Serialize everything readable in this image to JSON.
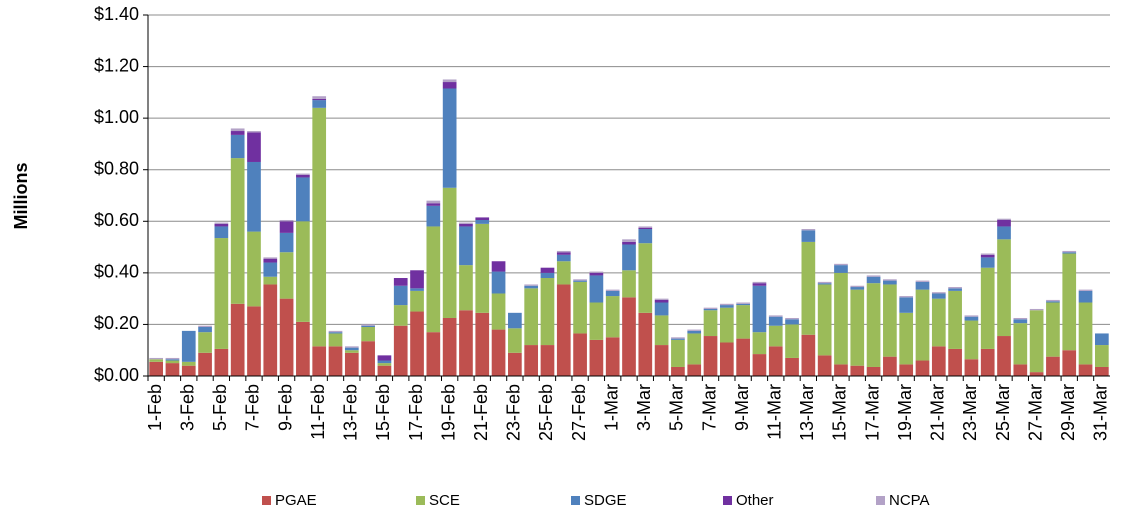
{
  "chart_data": {
    "type": "stacked-bar",
    "y_label": "Millions",
    "categories": [
      "1-Feb",
      null,
      "3-Feb",
      null,
      "5-Feb",
      null,
      "7-Feb",
      null,
      "9-Feb",
      null,
      "11-Feb",
      null,
      "13-Feb",
      null,
      "15-Feb",
      null,
      "17-Feb",
      null,
      "19-Feb",
      null,
      "21-Feb",
      null,
      "23-Feb",
      null,
      "25-Feb",
      null,
      "27-Feb",
      null,
      "1-Mar",
      null,
      "3-Mar",
      null,
      "5-Mar",
      null,
      "7-Mar",
      null,
      "9-Mar",
      null,
      "11-Mar",
      null,
      "13-Mar",
      null,
      "15-Mar",
      null,
      "17-Mar",
      null,
      "19-Mar",
      null,
      "21-Mar",
      null,
      "23-Mar",
      null,
      "25-Mar",
      null,
      "27-Mar",
      null,
      "29-Mar",
      null,
      "31-Mar"
    ],
    "series": [
      {
        "name": "PGAE",
        "color": "#c0504d",
        "values": [
          0.055,
          0.05,
          0.04,
          0.09,
          0.105,
          0.28,
          0.27,
          0.355,
          0.3,
          0.21,
          0.115,
          0.115,
          0.09,
          0.135,
          0.04,
          0.195,
          0.25,
          0.17,
          0.225,
          0.255,
          0.245,
          0.18,
          0.09,
          0.12,
          0.12,
          0.355,
          0.165,
          0.14,
          0.15,
          0.305,
          0.245,
          0.12,
          0.035,
          0.045,
          0.155,
          0.13,
          0.145,
          0.085,
          0.115,
          0.07,
          0.16,
          0.08,
          0.045,
          0.04,
          0.035,
          0.075,
          0.045,
          0.06,
          0.115,
          0.105,
          0.065,
          0.105,
          0.155,
          0.045,
          0.015,
          0.075,
          0.1,
          0.045,
          0.035
        ]
      },
      {
        "name": "SCE",
        "color": "#9bbb59",
        "values": [
          0.01,
          0.01,
          0.015,
          0.08,
          0.43,
          0.565,
          0.29,
          0.03,
          0.18,
          0.39,
          0.925,
          0.05,
          0.01,
          0.055,
          0.01,
          0.08,
          0.08,
          0.41,
          0.505,
          0.175,
          0.345,
          0.14,
          0.095,
          0.22,
          0.26,
          0.09,
          0.2,
          0.145,
          0.16,
          0.105,
          0.27,
          0.115,
          0.105,
          0.12,
          0.1,
          0.135,
          0.13,
          0.085,
          0.08,
          0.13,
          0.36,
          0.275,
          0.355,
          0.295,
          0.325,
          0.28,
          0.2,
          0.275,
          0.185,
          0.225,
          0.15,
          0.315,
          0.375,
          0.16,
          0.24,
          0.21,
          0.375,
          0.24,
          0.085
        ]
      },
      {
        "name": "SDGE",
        "color": "#4f81bd",
        "values": [
          0,
          0.005,
          0.12,
          0.02,
          0.045,
          0.09,
          0.27,
          0.055,
          0.075,
          0.17,
          0.03,
          0.005,
          0.01,
          0.005,
          0.01,
          0.075,
          0.01,
          0.08,
          0.385,
          0.15,
          0.015,
          0.085,
          0.06,
          0.01,
          0.02,
          0.025,
          0.005,
          0.105,
          0.02,
          0.1,
          0.055,
          0.05,
          0.005,
          0.01,
          0.005,
          0.01,
          0.005,
          0.18,
          0.035,
          0.02,
          0.045,
          0.005,
          0.03,
          0.01,
          0.025,
          0.015,
          0.06,
          0.03,
          0.02,
          0.01,
          0.015,
          0.04,
          0.05,
          0.015,
          0,
          0.005,
          0.005,
          0.045,
          0.045
        ]
      },
      {
        "name": "Other",
        "color": "#7030a0",
        "values": [
          0,
          0,
          0,
          0,
          0.01,
          0.015,
          0.115,
          0.015,
          0.045,
          0.01,
          0.005,
          0,
          0,
          0,
          0.02,
          0.03,
          0.07,
          0.01,
          0.025,
          0.01,
          0.01,
          0.04,
          0,
          0,
          0.02,
          0.01,
          0,
          0.01,
          0,
          0.01,
          0.005,
          0.01,
          0,
          0,
          0,
          0,
          0,
          0.01,
          0,
          0,
          0,
          0,
          0,
          0,
          0,
          0,
          0,
          0,
          0,
          0,
          0,
          0.01,
          0.025,
          0,
          0,
          0,
          0,
          0,
          0
        ]
      },
      {
        "name": "NCPA",
        "color": "#b3a2c7",
        "values": [
          0.005,
          0.005,
          0,
          0.005,
          0.005,
          0.01,
          0.005,
          0.005,
          0.005,
          0.005,
          0.01,
          0.005,
          0.005,
          0.005,
          0,
          0,
          0,
          0.01,
          0.01,
          0.005,
          0,
          0,
          0,
          0.005,
          0,
          0.005,
          0.005,
          0.005,
          0.005,
          0.01,
          0.005,
          0.005,
          0.005,
          0.005,
          0.005,
          0.005,
          0.005,
          0.005,
          0.005,
          0.005,
          0.005,
          0.005,
          0.005,
          0.005,
          0.005,
          0.005,
          0.005,
          0.005,
          0.005,
          0.005,
          0.005,
          0.005,
          0.005,
          0.005,
          0.005,
          0.005,
          0.005,
          0.005,
          0
        ]
      }
    ],
    "ylim": [
      0,
      1.4
    ],
    "yticks": [
      {
        "value": 0,
        "label": "$0.00"
      },
      {
        "value": 0.2,
        "label": "$0.20"
      },
      {
        "value": 0.4,
        "label": "$0.40"
      },
      {
        "value": 0.6,
        "label": "$0.60"
      },
      {
        "value": 0.8,
        "label": "$0.80"
      },
      {
        "value": 1.0,
        "label": "$1.00"
      },
      {
        "value": 1.2,
        "label": "$1.20"
      },
      {
        "value": 1.4,
        "label": "$1.40"
      }
    ],
    "grid": true,
    "legend": "bottom"
  }
}
